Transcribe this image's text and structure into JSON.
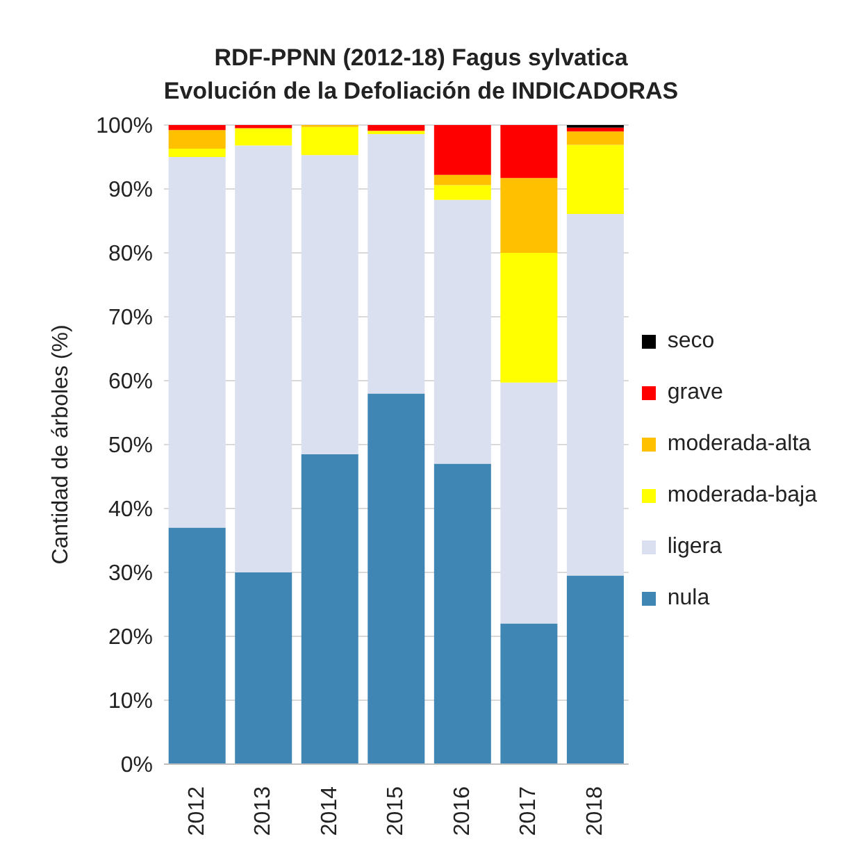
{
  "chart_data": {
    "type": "bar",
    "title": "RDF-PPNN (2012-18) Fagus sylvatica",
    "subtitle": "Evolución de la Defoliación de INDICADORAS",
    "ylabel": "Cantidad de árboles (%)",
    "categories": [
      "2012",
      "2013",
      "2014",
      "2015",
      "2016",
      "2017",
      "2018"
    ],
    "stacked": true,
    "grid": "y",
    "legend": "right",
    "ylim": [
      0,
      100
    ],
    "yticks": [
      {
        "value": 0,
        "label": "0%"
      },
      {
        "value": 10,
        "label": "10%"
      },
      {
        "value": 20,
        "label": "20%"
      },
      {
        "value": 30,
        "label": "30%"
      },
      {
        "value": 40,
        "label": "40%"
      },
      {
        "value": 50,
        "label": "50%"
      },
      {
        "value": 60,
        "label": "60%"
      },
      {
        "value": 70,
        "label": "70%"
      },
      {
        "value": 80,
        "label": "80%"
      },
      {
        "value": 90,
        "label": "90%"
      },
      {
        "value": 100,
        "label": "100%"
      }
    ],
    "series": [
      {
        "name": "nula",
        "color": "#3f86b4",
        "values": [
          37,
          30,
          48.5,
          58,
          47,
          22,
          29.5
        ]
      },
      {
        "name": "ligera",
        "color": "#dae0f0",
        "values": [
          58,
          66.8,
          46.8,
          40.6,
          41.3,
          37.7,
          56.6
        ]
      },
      {
        "name": "moderada-baja",
        "color": "#ffff00",
        "values": [
          1.3,
          2.7,
          4.4,
          0.5,
          2.3,
          20.3,
          10.8
        ]
      },
      {
        "name": "moderada-alta",
        "color": "#ffc000",
        "values": [
          2.9,
          0,
          0.3,
          0,
          1.6,
          11.7,
          2.1
        ]
      },
      {
        "name": "grave",
        "color": "#ff0000",
        "values": [
          0.8,
          0.5,
          0,
          0.9,
          7.8,
          8.3,
          0.6
        ]
      },
      {
        "name": "seco",
        "color": "#000000",
        "values": [
          0,
          0,
          0,
          0,
          0,
          0,
          0.4
        ]
      }
    ]
  }
}
